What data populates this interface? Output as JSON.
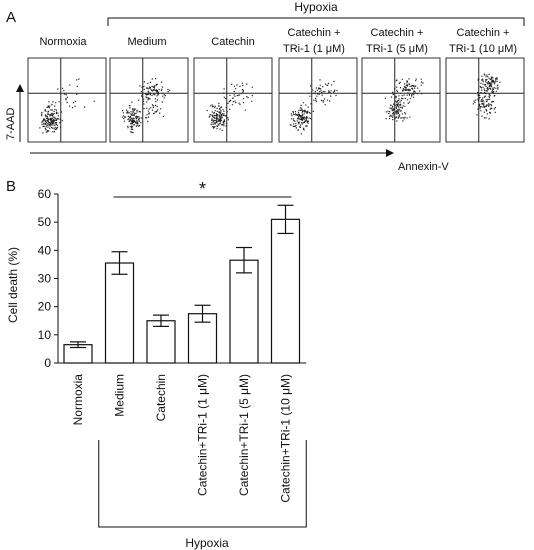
{
  "panel_a": {
    "label": "A",
    "group_label": "Hypoxia",
    "y_label": "7-AAD",
    "x_label": "Annexin-V",
    "panels": [
      {
        "title_lines": [
          "Normoxia"
        ]
      },
      {
        "title_lines": [
          "Medium"
        ]
      },
      {
        "title_lines": [
          "Catechin"
        ]
      },
      {
        "title_lines": [
          "Catechin +",
          "TRi-1 (1 μM)"
        ]
      },
      {
        "title_lines": [
          "Catechin +",
          "TRi-1 (5 μM)"
        ]
      },
      {
        "title_lines": [
          "Catechin +",
          "TRi-1 (10 μM)"
        ]
      }
    ]
  },
  "chart_data": {
    "panel_label": "B",
    "type": "bar",
    "ylabel": "Cell death (%)",
    "xlabel": "",
    "ylim": [
      0,
      60
    ],
    "yticks": [
      0,
      10,
      20,
      30,
      40,
      50,
      60
    ],
    "categories": [
      "Normoxia",
      "Medium",
      "Catechin",
      "Catechin+TRi-1 (1 μM)",
      "Catechin+TRi-1 (5 μM)",
      "Catechin+TRi-1 (10 μM)"
    ],
    "values": [
      6.5,
      35.5,
      15,
      17.5,
      36.5,
      51
    ],
    "errors": [
      1,
      4,
      2,
      3,
      4.5,
      5
    ],
    "bar_fill": "#ffffff",
    "bar_stroke": "#111111",
    "significance": {
      "symbol": "*",
      "from_index": 1,
      "to_index": 5
    },
    "group_bracket": {
      "label": "Hypoxia",
      "from_index": 1,
      "to_index": 5
    },
    "grid": false
  }
}
